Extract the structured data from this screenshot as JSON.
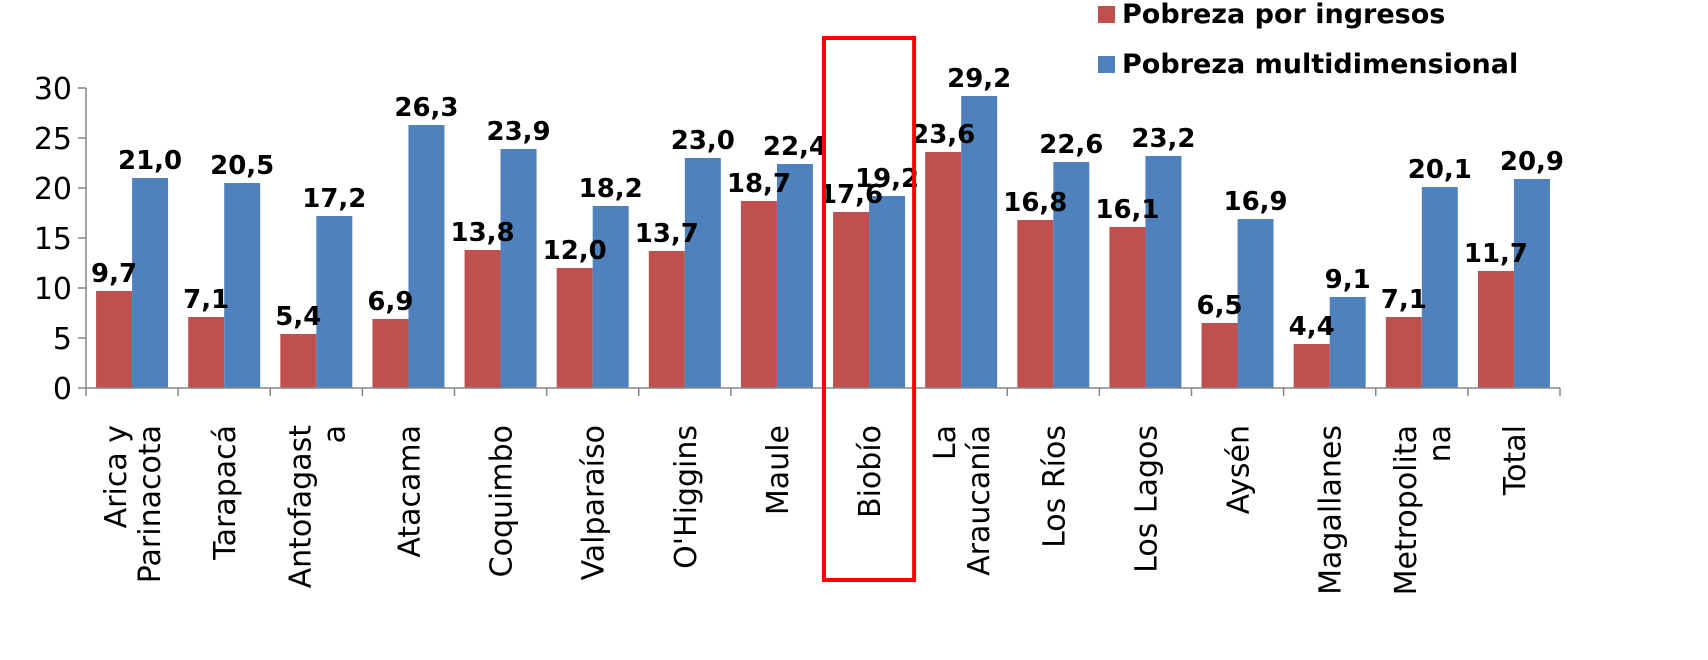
{
  "chart_data": {
    "type": "bar",
    "title": "",
    "xlabel": "",
    "ylabel": "",
    "ylim": [
      0,
      30
    ],
    "yticks": [
      "0",
      "5",
      "10",
      "15",
      "20",
      "25",
      "30"
    ],
    "grid": false,
    "legend_position": "top-right",
    "categories": [
      [
        "Arica y",
        "Parinacota"
      ],
      [
        "Tarapacá"
      ],
      [
        "Antofagast",
        "a"
      ],
      [
        "Atacama"
      ],
      [
        "Coquimbo"
      ],
      [
        "Valparaíso"
      ],
      [
        "O'Higgins"
      ],
      [
        "Maule"
      ],
      [
        "Biobío"
      ],
      [
        "La",
        "Araucanía"
      ],
      [
        "Los Ríos"
      ],
      [
        "Los Lagos"
      ],
      [
        "Aysén"
      ],
      [
        "Magallanes"
      ],
      [
        "Metropolita",
        "na"
      ],
      [
        "Total"
      ]
    ],
    "series": [
      {
        "name": "Pobreza por ingresos",
        "color": "#C0504D",
        "values": [
          9.7,
          7.1,
          5.4,
          6.9,
          13.8,
          12.0,
          13.7,
          18.7,
          17.6,
          23.6,
          16.8,
          16.1,
          6.5,
          4.4,
          7.1,
          11.7
        ],
        "labels": [
          "9,7",
          "7,1",
          "5,4",
          "6,9",
          "13,8",
          "12,0",
          "13,7",
          "18,7",
          "17,6",
          "23,6",
          "16,8",
          "16,1",
          "6,5",
          "4,4",
          "7,1",
          "11,7"
        ]
      },
      {
        "name": "Pobreza multidimensional",
        "color": "#4F81BD",
        "values": [
          21.0,
          20.5,
          17.2,
          26.3,
          23.9,
          18.2,
          23.0,
          22.4,
          19.2,
          29.2,
          22.6,
          23.2,
          16.9,
          9.1,
          20.1,
          20.9
        ],
        "labels": [
          "21,0",
          "20,5",
          "17,2",
          "26,3",
          "23,9",
          "18,2",
          "23,0",
          "22,4",
          "19,2",
          "29,2",
          "22,6",
          "23,2",
          "16,9",
          "9,1",
          "20,1",
          "20,9"
        ]
      }
    ],
    "highlight": {
      "category_index": 8,
      "color": "#FF0000"
    }
  }
}
